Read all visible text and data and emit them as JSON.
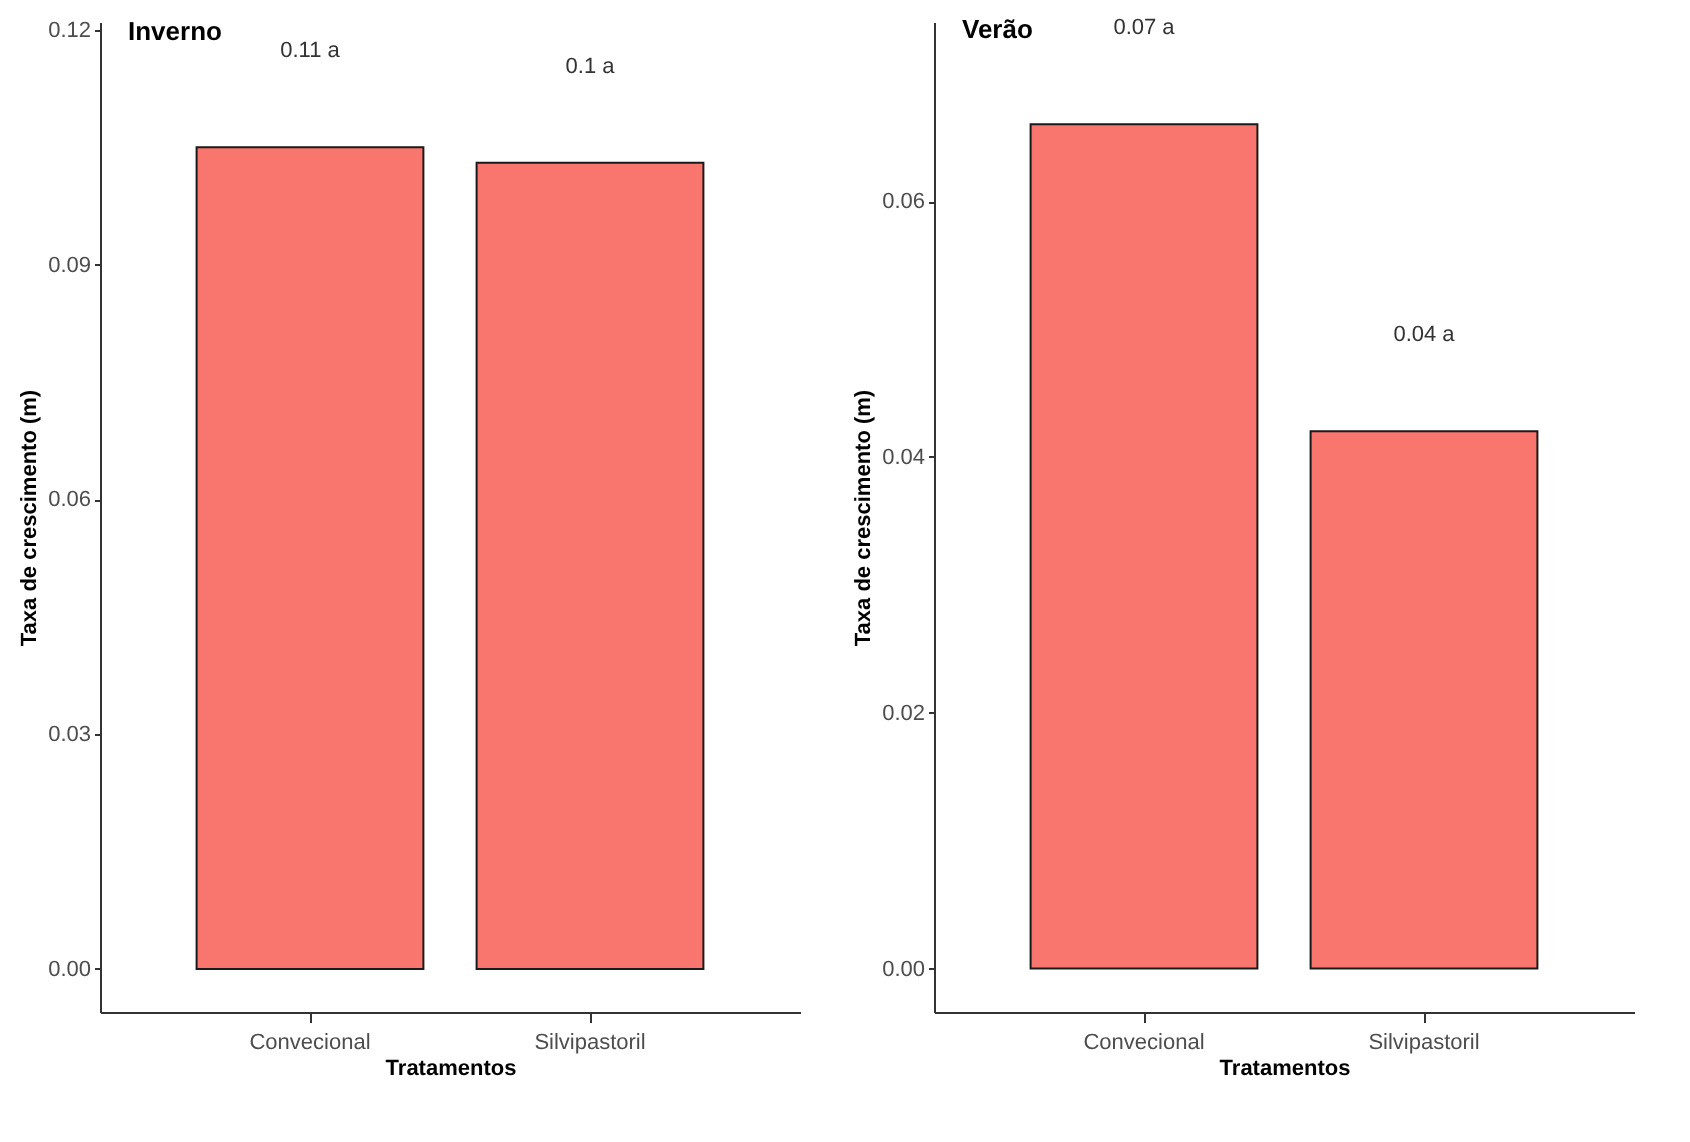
{
  "chart_data": [
    {
      "type": "bar",
      "title": "Inverno",
      "xlabel": "Tratamentos",
      "ylabel": "Taxa de crescimento (m)",
      "categories": [
        "Convecional",
        "Silvipastoril"
      ],
      "values": [
        0.105,
        0.103
      ],
      "color": "#f8766d",
      "ylim": [
        -0.0055,
        0.121
      ],
      "yticks": [
        {
          "value": 0,
          "label": "0.00"
        },
        {
          "value": 0.03,
          "label": "0.03"
        },
        {
          "value": 0.06,
          "label": "0.06"
        },
        {
          "value": 0.09,
          "label": "0.09"
        },
        {
          "value": 0.12,
          "label": "0.12"
        }
      ],
      "grid": false,
      "annotations": [
        "0.11 a",
        "0.1 a"
      ]
    },
    {
      "type": "bar",
      "title": "Verão",
      "xlabel": "Tratamentos",
      "ylabel": "Taxa de crescimento (m)",
      "categories": [
        "Convecional",
        "Silvipastoril"
      ],
      "values": [
        0.066,
        0.042
      ],
      "color": "#f8766d",
      "ylim": [
        -0.0034,
        0.074
      ],
      "yticks": [
        {
          "value": 0,
          "label": "0.00"
        },
        {
          "value": 0.02,
          "label": "0.02"
        },
        {
          "value": 0.04,
          "label": "0.04"
        },
        {
          "value": 0.06,
          "label": "0.06"
        }
      ],
      "grid": false,
      "annotations": [
        "0.07 a",
        "0.04 a"
      ]
    }
  ]
}
